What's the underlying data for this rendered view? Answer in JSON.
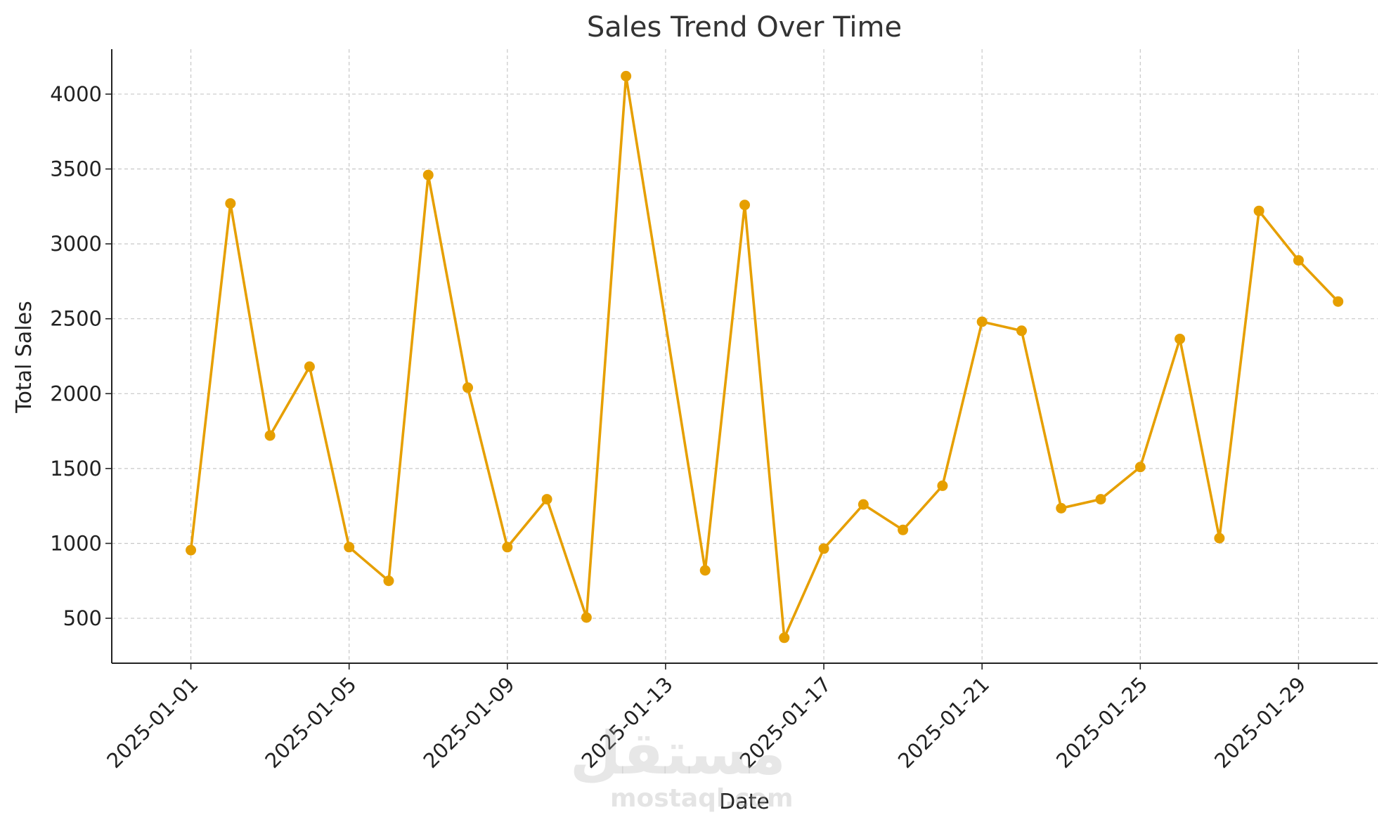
{
  "watermark": {
    "arabic": "مستقل",
    "latin": "mostaql.com"
  },
  "chart_data": {
    "type": "line",
    "title": "Sales Trend Over Time",
    "xlabel": "Date",
    "ylabel": "Total Sales",
    "x": [
      "2025-01-01",
      "2025-01-02",
      "2025-01-03",
      "2025-01-04",
      "2025-01-05",
      "2025-01-06",
      "2025-01-07",
      "2025-01-08",
      "2025-01-09",
      "2025-01-10",
      "2025-01-11",
      "2025-01-12",
      "2025-01-13",
      "2025-01-14",
      "2025-01-15",
      "2025-01-16",
      "2025-01-17",
      "2025-01-18",
      "2025-01-19",
      "2025-01-20",
      "2025-01-21",
      "2025-01-22",
      "2025-01-23",
      "2025-01-24",
      "2025-01-25",
      "2025-01-26",
      "2025-01-27",
      "2025-01-28",
      "2025-01-29",
      "2025-01-30"
    ],
    "series": [
      {
        "values": [
          955,
          3270,
          1720,
          2180,
          975,
          750,
          3460,
          2040,
          975,
          1295,
          505,
          4120,
          null,
          820,
          3260,
          370,
          965,
          1260,
          1090,
          1385,
          2480,
          2420,
          1235,
          1295,
          1510,
          2365,
          1035,
          3220,
          2890,
          2615
        ]
      }
    ],
    "xticks": [
      "2025-01-01",
      "2025-01-05",
      "2025-01-09",
      "2025-01-13",
      "2025-01-17",
      "2025-01-21",
      "2025-01-25",
      "2025-01-29"
    ],
    "yticks": [
      500,
      1000,
      1500,
      2000,
      2500,
      3000,
      3500,
      4000
    ],
    "xlim": [
      "2024-12-30",
      "2025-01-31"
    ],
    "ylim": [
      200,
      4300
    ],
    "grid": true,
    "color": "#e69f00"
  }
}
